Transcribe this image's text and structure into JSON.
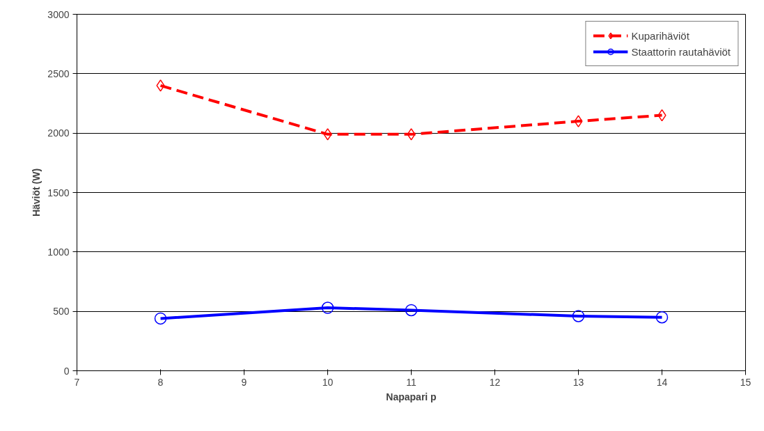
{
  "chart_data": {
    "type": "line",
    "xlabel": "Napapari p",
    "ylabel": "Häviöt (W)",
    "x": [
      8,
      10,
      11,
      13,
      14
    ],
    "series": [
      {
        "name": "Kuparihäviöt",
        "color": "#ff0000",
        "values": [
          2400,
          1990,
          1990,
          2100,
          2150
        ],
        "marker": "diamond",
        "line_style": "dashed"
      },
      {
        "name": "Staattorin rautahäviöt",
        "color": "#0000ff",
        "values": [
          440,
          530,
          510,
          460,
          450
        ],
        "marker": "circle",
        "line_style": "solid"
      }
    ],
    "xlim": [
      7,
      15
    ],
    "xticks": [
      7,
      8,
      9,
      10,
      11,
      12,
      13,
      14,
      15
    ],
    "ylim": [
      0,
      3000
    ],
    "yticks": [
      0,
      500,
      1000,
      1500,
      2000,
      2500,
      3000
    ],
    "grid": "y",
    "legend": "top right"
  }
}
